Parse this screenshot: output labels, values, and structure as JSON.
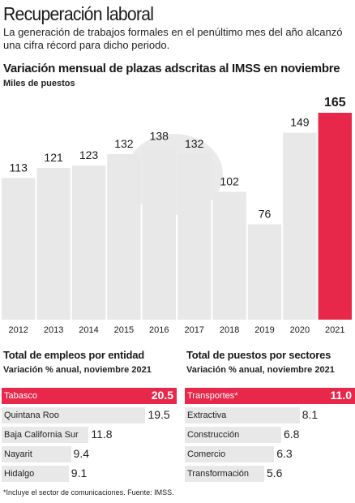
{
  "header": {
    "headline": "Recuperación laboral",
    "subtitle": "La generación de trabajos formales en el penúltimo mes del año alcanzó una cifra récord para dicho periodo."
  },
  "chart_data": [
    {
      "type": "bar",
      "title": "Variación mensual de plazas adscritas al IMSS en noviembre",
      "ylabel": "Miles de puestos",
      "categories": [
        "2012",
        "2013",
        "2014",
        "2015",
        "2016",
        "2017",
        "2018",
        "2019",
        "2020",
        "2021"
      ],
      "values": [
        113,
        121,
        123,
        132,
        138,
        132,
        102,
        76,
        149,
        165
      ],
      "highlight_index": 9,
      "ylim": [
        0,
        165
      ],
      "grid": false,
      "colors": {
        "bar": "#e8e8e8",
        "highlight": "#e8284a"
      }
    },
    {
      "type": "bar",
      "orientation": "horizontal",
      "title": "Total de empleos por entidad",
      "subtitle": "Variación % anual, noviembre 2021",
      "categories": [
        "Tabasco",
        "Quintana Roo",
        "Baja California Sur",
        "Nayarit",
        "Hidalgo"
      ],
      "values": [
        20.5,
        19.5,
        11.8,
        9.4,
        9.1
      ],
      "highlight_index": 0
    },
    {
      "type": "bar",
      "orientation": "horizontal",
      "title": "Total de puestos por sectores",
      "subtitle": "Variación % anual, noviembre 2021",
      "categories": [
        "Transportes*",
        "Extractiva",
        "Construcción",
        "Comercio",
        "Transformación"
      ],
      "values": [
        11.0,
        8.1,
        6.8,
        6.3,
        5.6
      ],
      "value_labels": [
        "11.0",
        "8.1",
        "6.8",
        "6.3",
        "5.6"
      ],
      "highlight_index": 0
    }
  ],
  "footnote": "*Incluye el sector de comunicaciones. Fuente: IMSS."
}
